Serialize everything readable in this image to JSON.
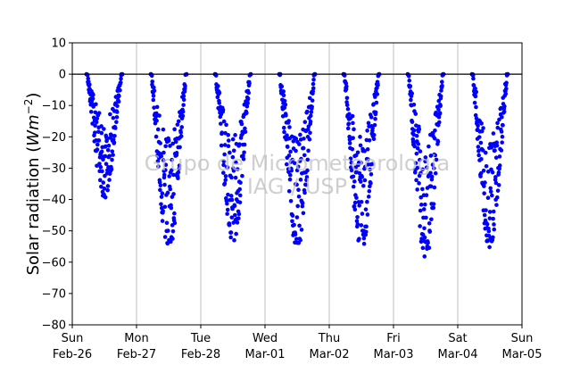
{
  "chart_data": {
    "type": "scatter",
    "title": "",
    "ylabel_prefix": "Solar radiation (",
    "ylabel_unit_base": "Wm",
    "ylabel_unit_exp": "−2",
    "ylabel_suffix": ")",
    "ylim": [
      -80,
      10
    ],
    "yticks": [
      10,
      0,
      -10,
      -20,
      -30,
      -40,
      -50,
      -60,
      -70,
      -80
    ],
    "xlim": [
      0,
      7
    ],
    "xticks": [
      {
        "x": 0,
        "day": "Sun",
        "date": "Feb-26"
      },
      {
        "x": 1,
        "day": "Mon",
        "date": "Feb-27"
      },
      {
        "x": 2,
        "day": "Tue",
        "date": "Feb-28"
      },
      {
        "x": 3,
        "day": "Wed",
        "date": "Mar-01"
      },
      {
        "x": 4,
        "day": "Thu",
        "date": "Mar-02"
      },
      {
        "x": 5,
        "day": "Fri",
        "date": "Mar-03"
      },
      {
        "x": 6,
        "day": "Sat",
        "date": "Mar-04"
      },
      {
        "x": 7,
        "day": "Sun",
        "date": "Mar-05"
      }
    ],
    "grid": "vertical",
    "zero_line": true,
    "marker_color": "#0000ff",
    "watermark_line1": "Grupo de Micrometeorologia",
    "watermark_line2": "IAG / USP",
    "days": [
      {
        "day": 0,
        "start": 0.22,
        "end": 0.78,
        "min": -40
      },
      {
        "day": 1,
        "start": 0.22,
        "end": 0.78,
        "min": -58
      },
      {
        "day": 2,
        "start": 0.22,
        "end": 0.78,
        "min": -55
      },
      {
        "day": 3,
        "start": 0.22,
        "end": 0.78,
        "min": -57
      },
      {
        "day": 4,
        "start": 0.22,
        "end": 0.78,
        "min": -57
      },
      {
        "day": 5,
        "start": 0.22,
        "end": 0.78,
        "min": -60
      },
      {
        "day": 6,
        "start": 0.22,
        "end": 0.78,
        "min": -56
      }
    ]
  }
}
